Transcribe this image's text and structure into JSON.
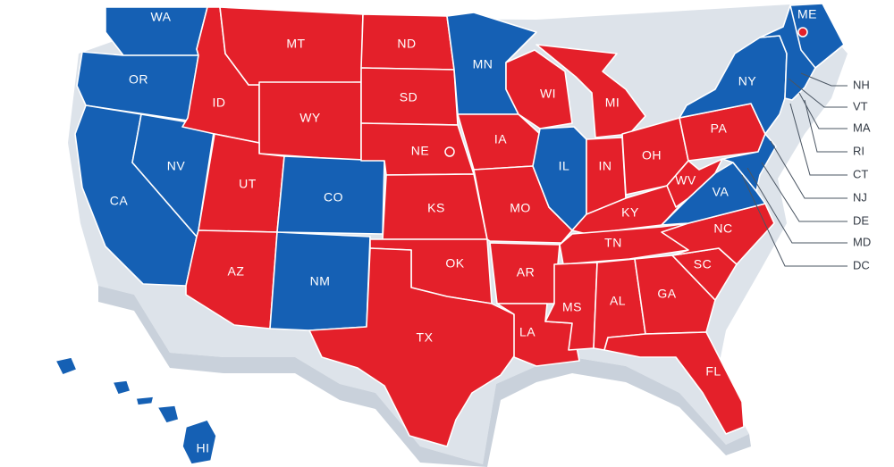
{
  "colors": {
    "red": "#e4202a",
    "blue": "#1560b4",
    "outline": "#ffffff",
    "extrusion": "#dde3ea"
  },
  "states": {
    "WA": "blue",
    "OR": "blue",
    "CA": "blue",
    "NV": "blue",
    "CO": "blue",
    "NM": "blue",
    "MN": "blue",
    "IL": "blue",
    "VA": "blue",
    "NY": "blue",
    "ME": "blue",
    "HI": "blue",
    "ID": "red",
    "MT": "red",
    "WY": "red",
    "UT": "red",
    "AZ": "red",
    "ND": "red",
    "SD": "red",
    "NE": "red",
    "KS": "red",
    "OK": "red",
    "TX": "red",
    "IA": "red",
    "MO": "red",
    "AR": "red",
    "LA": "red",
    "WI": "red",
    "MI": "red",
    "IN": "red",
    "OH": "red",
    "KY": "red",
    "TN": "red",
    "MS": "red",
    "AL": "red",
    "GA": "red",
    "FL": "red",
    "SC": "red",
    "NC": "red",
    "WV": "red",
    "PA": "red"
  },
  "labels": {
    "WA": "WA",
    "OR": "OR",
    "CA": "CA",
    "NV": "NV",
    "ID": "ID",
    "MT": "MT",
    "WY": "WY",
    "UT": "UT",
    "AZ": "AZ",
    "CO": "CO",
    "NM": "NM",
    "ND": "ND",
    "SD": "SD",
    "NE": "NE",
    "KS": "KS",
    "OK": "OK",
    "TX": "TX",
    "MN": "MN",
    "IA": "IA",
    "MO": "MO",
    "AR": "AR",
    "LA": "LA",
    "WI": "WI",
    "IL": "IL",
    "MI": "MI",
    "IN": "IN",
    "OH": "OH",
    "KY": "KY",
    "TN": "TN",
    "MS": "MS",
    "AL": "AL",
    "GA": "GA",
    "FL": "FL",
    "SC": "SC",
    "NC": "NC",
    "VA": "VA",
    "WV": "WV",
    "PA": "PA",
    "NY": "NY",
    "ME": "ME",
    "HI": "HI"
  },
  "side_labels": {
    "NH": "NH",
    "VT": "VT",
    "MA": "MA",
    "RI": "RI",
    "CT": "CT",
    "NJ": "NJ",
    "DE": "DE",
    "MD": "MD",
    "DC": "DC"
  },
  "markers": {
    "maine_capital": "split-electoral-vote-marker",
    "nebraska_capital": "split-electoral-vote-marker"
  }
}
